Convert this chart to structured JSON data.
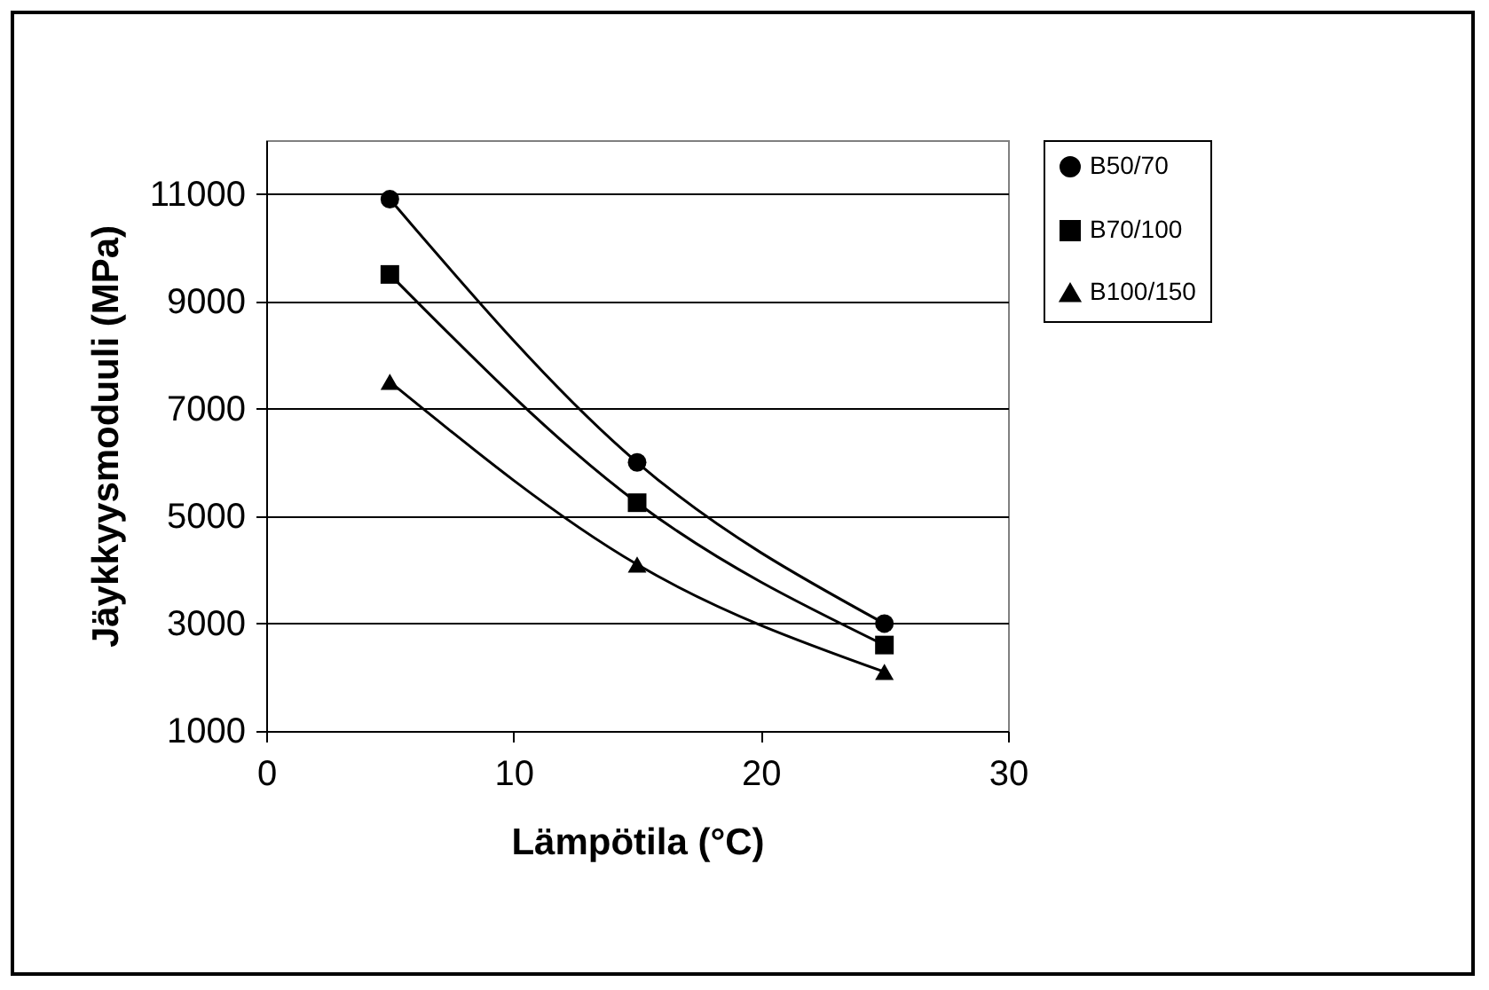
{
  "chart_data": {
    "type": "line",
    "xlabel": "Lämpötila (°C)",
    "ylabel": "Jäykkyysmoduuli (MPa)",
    "x": [
      5,
      15,
      25
    ],
    "xlim": [
      0,
      30
    ],
    "xticks": [
      0,
      10,
      20,
      30
    ],
    "ylim": [
      1000,
      12000
    ],
    "yticks": [
      1000,
      3000,
      5000,
      7000,
      9000,
      11000
    ],
    "grid": "y",
    "legend": "right",
    "series": [
      {
        "name": "B50/70",
        "color": "#000000",
        "marker": "circle",
        "values": [
          10900,
          6000,
          3000
        ]
      },
      {
        "name": "B70/100",
        "color": "#000000",
        "marker": "square",
        "values": [
          9500,
          5250,
          2600
        ]
      },
      {
        "name": "B100/150",
        "color": "#000000",
        "marker": "triangle",
        "values": [
          7500,
          4100,
          2100
        ]
      }
    ]
  }
}
